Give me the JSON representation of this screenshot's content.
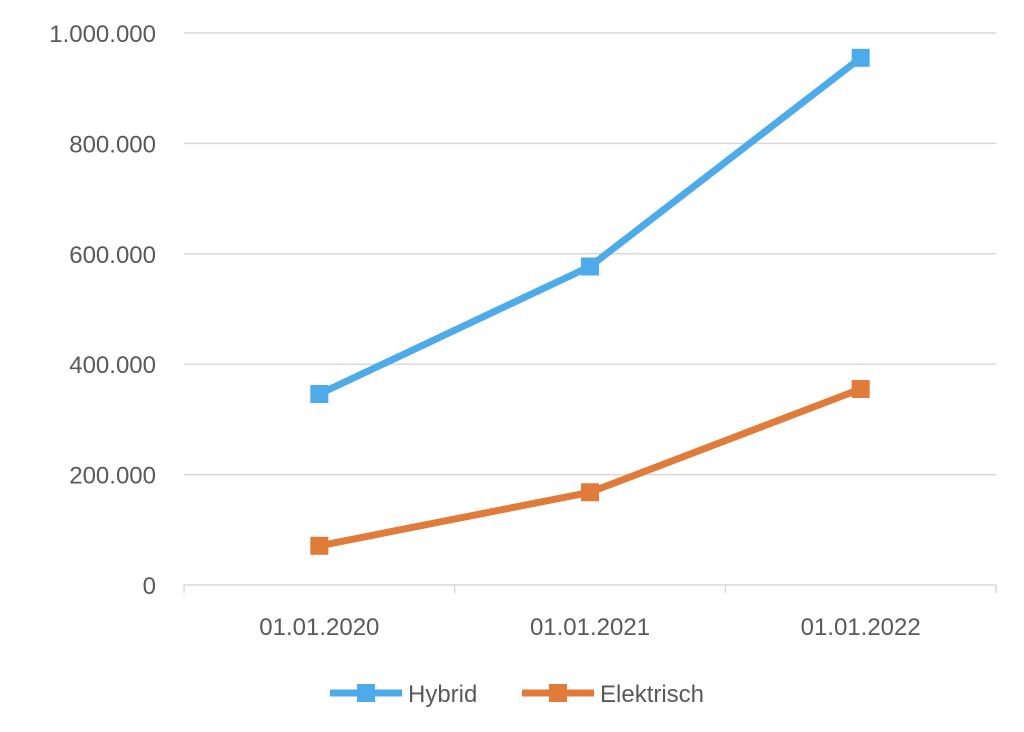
{
  "chart_data": {
    "type": "line",
    "title": "",
    "xlabel": "",
    "ylabel": "",
    "categories": [
      "01.01.2020",
      "01.01.2021",
      "01.01.2022"
    ],
    "series": [
      {
        "name": "Hybrid",
        "color": "#4DABE9",
        "values": [
          346000,
          577000,
          955000
        ]
      },
      {
        "name": "Elektrisch",
        "color": "#E07B39",
        "values": [
          71000,
          168000,
          355000
        ]
      }
    ],
    "ylim": [
      0,
      1000000
    ],
    "yticks": [
      0,
      200000,
      400000,
      600000,
      800000,
      1000000
    ],
    "ytick_labels": [
      "0",
      "200.000",
      "400.000",
      "600.000",
      "800.000",
      "1.000.000"
    ],
    "grid": true,
    "legend": "bottom-center"
  }
}
